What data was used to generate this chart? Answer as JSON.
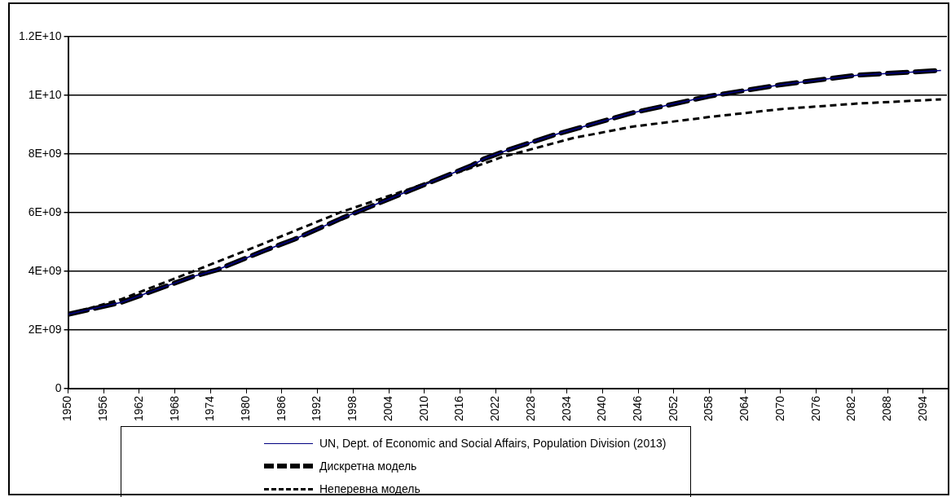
{
  "chart_data": {
    "type": "line",
    "xlim": [
      1950,
      2098
    ],
    "xticks": [
      1950,
      1956,
      1962,
      1968,
      1974,
      1980,
      1986,
      1992,
      1998,
      2004,
      2010,
      2016,
      2022,
      2028,
      2034,
      2040,
      2046,
      2052,
      2058,
      2064,
      2070,
      2076,
      2082,
      2088,
      2094
    ],
    "ylim": [
      0,
      12000000000
    ],
    "yticks": [
      0,
      {
        "value": 2000000000,
        "label": "2E+09"
      },
      {
        "value": 4000000000,
        "label": "4E+09"
      },
      {
        "value": 6000000000,
        "label": "6E+09"
      },
      {
        "value": 8000000000,
        "label": "8E+09"
      },
      {
        "value": 10000000000,
        "label": "1E+10"
      },
      {
        "value": 12000000000,
        "label": "1.2E+10"
      }
    ],
    "grid": "y",
    "legend": "bottom",
    "x": [
      1950,
      1959,
      1971,
      1975,
      1983,
      1988,
      1996,
      2000,
      2008,
      2018,
      2020,
      2024,
      2032,
      2045,
      2058,
      2070,
      2083,
      2097
    ],
    "series": [
      {
        "name": "UN, Dept. of Economic and Social Affairs, Population Division (2013)",
        "color": "#000080",
        "line_style": "solid",
        "values": [
          2530000000,
          2940000000,
          3820000000,
          4040000000,
          4700000000,
          5080000000,
          5800000000,
          6130000000,
          6790000000,
          7610000000,
          7830000000,
          8130000000,
          8660000000,
          9400000000,
          9970000000,
          10360000000,
          10690000000,
          10850000000
        ]
      },
      {
        "name": "Дискретна модель",
        "color": "#000000",
        "line_style": "dashed",
        "values": [
          2530000000,
          2940000000,
          3820000000,
          4040000000,
          4700000000,
          5080000000,
          5800000000,
          6130000000,
          6790000000,
          7610000000,
          7830000000,
          8130000000,
          8660000000,
          9400000000,
          9970000000,
          10360000000,
          10690000000,
          10850000000
        ]
      },
      {
        "name": "Неперевна модель",
        "color": "#000000",
        "line_style": "dashed",
        "x": [
          1950,
          1959,
          1971,
          1982,
          1996,
          2008,
          2020,
          2023,
          2035,
          2045,
          2058,
          2070,
          2083,
          2097
        ],
        "values": [
          2530000000,
          3050000000,
          3990000000,
          4870000000,
          6020000000,
          6840000000,
          7670000000,
          7890000000,
          8540000000,
          8930000000,
          9260000000,
          9530000000,
          9720000000,
          9860000000
        ]
      }
    ]
  }
}
